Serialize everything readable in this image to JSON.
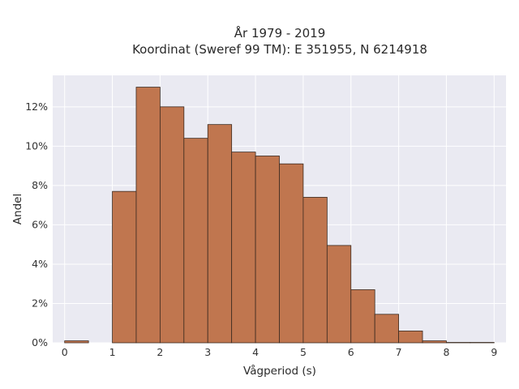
{
  "chart_data": {
    "type": "bar",
    "title_lines": [
      "År 1979 - 2019",
      "Koordinat (Sweref 99 TM): E 351955, N 6214918"
    ],
    "xlabel": "Vågperiod (s)",
    "ylabel": "Andel",
    "xlim": [
      -0.25,
      9.25
    ],
    "ylim": [
      0,
      13.6
    ],
    "x_ticks": [
      0,
      1,
      2,
      3,
      4,
      5,
      6,
      7,
      8,
      9
    ],
    "x_tick_labels": [
      "0",
      "1",
      "2",
      "3",
      "4",
      "5",
      "6",
      "7",
      "8",
      "9"
    ],
    "y_ticks": [
      0,
      2,
      4,
      6,
      8,
      10,
      12
    ],
    "y_tick_labels": [
      "0%",
      "2%",
      "4%",
      "6%",
      "8%",
      "10%",
      "12%"
    ],
    "bin_width": 0.5,
    "bin_starts": [
      0,
      0.5,
      1,
      1.5,
      2,
      2.5,
      3,
      3.5,
      4,
      4.5,
      5,
      5.5,
      6,
      6.5,
      7,
      7.5,
      8,
      8.5
    ],
    "values": [
      0.1,
      0,
      7.7,
      13.0,
      12.0,
      10.4,
      11.1,
      9.7,
      9.5,
      9.1,
      7.4,
      4.95,
      2.7,
      1.45,
      0.6,
      0.1,
      0.02,
      0.02
    ],
    "grid": true,
    "colors": {
      "bar": "#c0764f",
      "bar_edge": "#3b2a20",
      "plot_bg": "#eaeaf2",
      "grid": "#ffffff"
    }
  }
}
